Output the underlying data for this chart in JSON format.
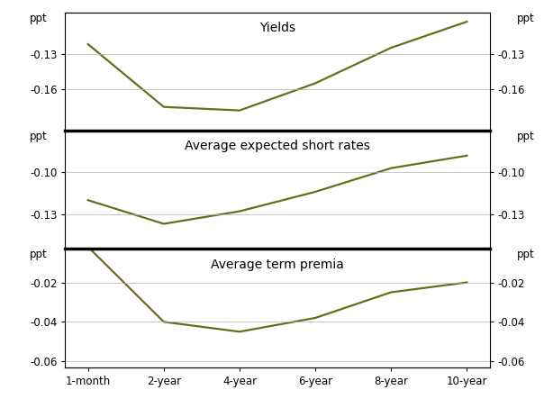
{
  "x_labels": [
    "1-month",
    "2-year",
    "4-year",
    "6-year",
    "8-year",
    "10-year"
  ],
  "x_positions": [
    0,
    1,
    2,
    3,
    4,
    5
  ],
  "yields": [
    -0.122,
    -0.175,
    -0.178,
    -0.155,
    -0.125,
    -0.103
  ],
  "avg_short_rates": [
    -0.12,
    -0.137,
    -0.128,
    -0.114,
    -0.097,
    -0.088
  ],
  "avg_term_premia": [
    -0.002,
    -0.04,
    -0.045,
    -0.038,
    -0.025,
    -0.02
  ],
  "panel_titles": [
    "Yields",
    "Average expected short rates",
    "Average term premia"
  ],
  "ylabel": "ppt",
  "yields_ylim": [
    -0.195,
    -0.095
  ],
  "yields_yticks": [
    -0.13,
    -0.16
  ],
  "short_rates_ylim": [
    -0.155,
    -0.07
  ],
  "short_rates_yticks": [
    -0.1,
    -0.13
  ],
  "term_premia_ylim": [
    -0.063,
    -0.003
  ],
  "term_premia_yticks": [
    -0.02,
    -0.04,
    -0.06
  ],
  "line_color": "#6b6b1e",
  "line_width": 1.6,
  "grid_color": "#b0b0b0",
  "background_color": "#ffffff",
  "tick_label_fontsize": 8.5,
  "title_fontsize": 10
}
